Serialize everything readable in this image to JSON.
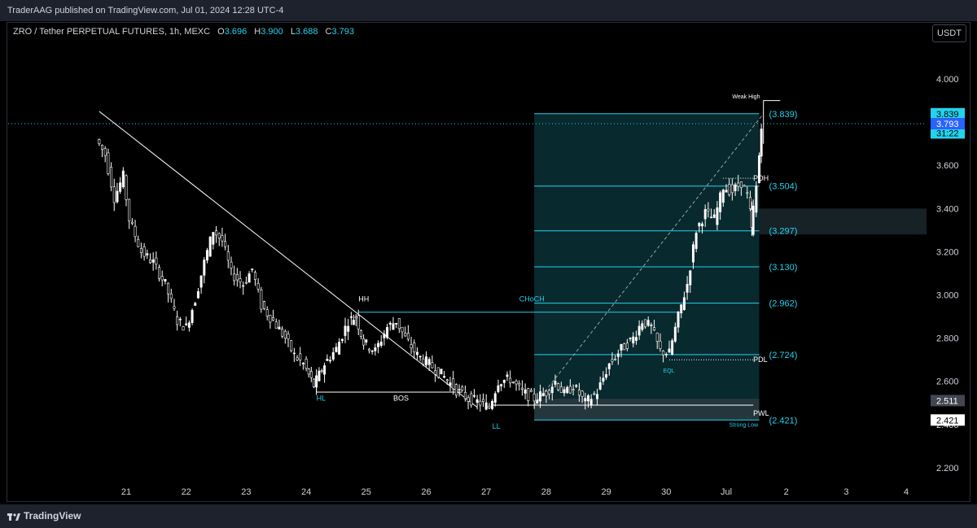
{
  "header": {
    "published": "TraderAAG published on TradingView.com, Jul 01, 2024 12:28 UTC-4"
  },
  "legend": {
    "symbol": "ZRO / Tether PERPETUAL FUTURES, 1h, MEXC",
    "o_label": "O",
    "o": "3.696",
    "h_label": "H",
    "h": "3.900",
    "l_label": "L",
    "l": "3.688",
    "c_label": "C",
    "c": "3.793"
  },
  "currency_button": "USDT",
  "footer": {
    "brand": "TradingView"
  },
  "colors": {
    "up": "#ffffff",
    "down": "#ffffff",
    "accent": "#22d3ee",
    "fib_zone": "#0e4a52",
    "price_tag": "#2962ff"
  },
  "chart_data": {
    "type": "candlestick",
    "y_ticks": [
      "2.200",
      "2.400",
      "2.600",
      "2.800",
      "3.000",
      "3.200",
      "3.400",
      "3.600",
      "3.800",
      "4.000"
    ],
    "ylim": [
      2.12,
      4.12
    ],
    "x_ticks": [
      "21",
      "22",
      "23",
      "24",
      "25",
      "26",
      "27",
      "28",
      "29",
      "30",
      "Jul",
      "2",
      "3",
      "4"
    ],
    "last_price": "3.793",
    "price_tags": [
      {
        "label": "3.839",
        "value": 3.839
      },
      {
        "label": "3.793",
        "value": 3.793
      },
      {
        "label": "31:22",
        "value": 3.75
      },
      {
        "label": "2.511",
        "value": 2.511
      },
      {
        "label": "2.421",
        "value": 2.421
      }
    ],
    "fib_levels": [
      {
        "label": "(3.839)",
        "value": 3.839
      },
      {
        "label": "(3.504)",
        "value": 3.504
      },
      {
        "label": "(3.297)",
        "value": 3.297
      },
      {
        "label": "(3.130)",
        "value": 3.13
      },
      {
        "label": "(2.962)",
        "value": 2.962
      },
      {
        "label": "(2.724)",
        "value": 2.724
      },
      {
        "label": "(2.421)",
        "value": 2.421
      }
    ],
    "annotations": [
      {
        "text": "HH",
        "day": 24.87,
        "value": 2.97,
        "color": "#ffffff"
      },
      {
        "text": "HL",
        "day": 24.17,
        "value": 2.51,
        "color": "#22d3ee"
      },
      {
        "text": "BOS",
        "day": 25.45,
        "value": 2.51,
        "color": "#ffffff"
      },
      {
        "text": "LL",
        "day": 27.1,
        "value": 2.38,
        "color": "#22d3ee"
      },
      {
        "text": "CHoCH",
        "day": 27.55,
        "value": 2.97,
        "color": "#22d3ee"
      },
      {
        "text": "EQL",
        "day": 29.95,
        "value": 2.64,
        "color": "#22d3ee"
      },
      {
        "text": "PDL",
        "day": 31.45,
        "value": 2.69,
        "color": "#ffffff"
      },
      {
        "text": "PWL",
        "day": 31.45,
        "value": 2.44,
        "color": "#ffffff"
      },
      {
        "text": "PDH",
        "day": 31.45,
        "value": 3.53,
        "color": "#ffffff"
      },
      {
        "text": "Weak High",
        "day": 31.1,
        "value": 3.91,
        "color": "#ffffff"
      },
      {
        "text": "Strong Low",
        "day": 31.05,
        "value": 2.39,
        "color": "#22d3ee"
      }
    ],
    "price_path": [
      [
        20.55,
        3.72
      ],
      [
        20.7,
        3.65
      ],
      [
        20.85,
        3.45
      ],
      [
        21.0,
        3.55
      ],
      [
        21.1,
        3.35
      ],
      [
        21.3,
        3.2
      ],
      [
        21.5,
        3.15
      ],
      [
        21.7,
        3.05
      ],
      [
        21.9,
        2.88
      ],
      [
        22.05,
        2.85
      ],
      [
        22.2,
        2.98
      ],
      [
        22.35,
        3.15
      ],
      [
        22.5,
        3.3
      ],
      [
        22.65,
        3.25
      ],
      [
        22.8,
        3.1
      ],
      [
        23.0,
        3.05
      ],
      [
        23.15,
        3.12
      ],
      [
        23.3,
        2.95
      ],
      [
        23.5,
        2.88
      ],
      [
        23.7,
        2.8
      ],
      [
        23.85,
        2.72
      ],
      [
        24.0,
        2.68
      ],
      [
        24.17,
        2.58
      ],
      [
        24.35,
        2.68
      ],
      [
        24.55,
        2.75
      ],
      [
        24.75,
        2.88
      ],
      [
        24.87,
        2.9
      ],
      [
        25.0,
        2.78
      ],
      [
        25.2,
        2.74
      ],
      [
        25.4,
        2.85
      ],
      [
        25.55,
        2.88
      ],
      [
        25.7,
        2.8
      ],
      [
        25.9,
        2.72
      ],
      [
        26.1,
        2.68
      ],
      [
        26.35,
        2.62
      ],
      [
        26.55,
        2.56
      ],
      [
        26.75,
        2.52
      ],
      [
        26.95,
        2.5
      ],
      [
        27.1,
        2.48
      ],
      [
        27.25,
        2.6
      ],
      [
        27.45,
        2.61
      ],
      [
        27.65,
        2.55
      ],
      [
        27.85,
        2.52
      ],
      [
        28.05,
        2.55
      ],
      [
        28.2,
        2.6
      ],
      [
        28.35,
        2.54
      ],
      [
        28.5,
        2.58
      ],
      [
        28.7,
        2.5
      ],
      [
        28.9,
        2.55
      ],
      [
        29.1,
        2.68
      ],
      [
        29.3,
        2.75
      ],
      [
        29.5,
        2.8
      ],
      [
        29.65,
        2.88
      ],
      [
        29.8,
        2.85
      ],
      [
        29.95,
        2.74
      ],
      [
        30.1,
        2.73
      ],
      [
        30.25,
        2.9
      ],
      [
        30.4,
        3.05
      ],
      [
        30.55,
        3.3
      ],
      [
        30.7,
        3.38
      ],
      [
        30.85,
        3.35
      ],
      [
        31.0,
        3.5
      ],
      [
        31.15,
        3.48
      ],
      [
        31.3,
        3.52
      ],
      [
        31.4,
        3.46
      ],
      [
        31.45,
        3.3
      ],
      [
        31.55,
        3.5
      ],
      [
        31.62,
        3.793
      ]
    ]
  }
}
